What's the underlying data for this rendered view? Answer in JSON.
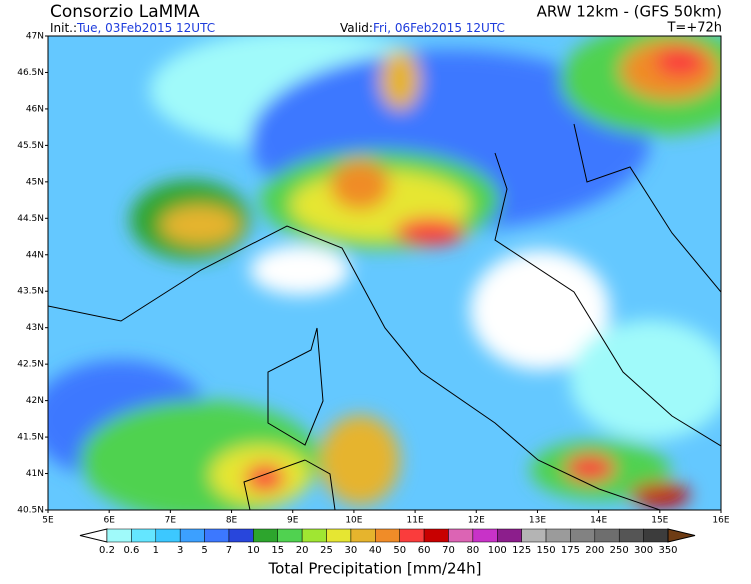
{
  "header": {
    "title": "Consorzio LaMMA",
    "model": "ARW 12km - (GFS 50km)",
    "init_label": "Init.:",
    "init_value": "Tue, 03Feb2015 12UTC",
    "valid_label": "Valid:",
    "valid_value": "Fri, 06Feb2015 12UTC",
    "lead": "T=+72h"
  },
  "map": {
    "y_ticks": [
      "47N",
      "46.5N",
      "46N",
      "45.5N",
      "45N",
      "44.5N",
      "44N",
      "43.5N",
      "43N",
      "42.5N",
      "42N",
      "41.5N",
      "41N",
      "40.5N"
    ],
    "x_ticks": [
      "5E",
      "6E",
      "7E",
      "8E",
      "9E",
      "10E",
      "11E",
      "12E",
      "13E",
      "14E",
      "15E",
      "16E"
    ]
  },
  "colorbar": {
    "labels": [
      "0.2",
      "0.6",
      "1",
      "3",
      "5",
      "7",
      "10",
      "15",
      "20",
      "25",
      "30",
      "40",
      "50",
      "60",
      "70",
      "80",
      "100",
      "125",
      "150",
      "175",
      "200",
      "250",
      "300",
      "350"
    ],
    "colors": [
      "#ffffff",
      "#a0fafa",
      "#64e6ff",
      "#3cc8ff",
      "#3ca0ff",
      "#3c78ff",
      "#2846dc",
      "#2da52d",
      "#50d250",
      "#a0e632",
      "#e6e632",
      "#e6b42d",
      "#f08c28",
      "#fa3c3c",
      "#c80000",
      "#dc64b4",
      "#c832c8",
      "#8c1e8c",
      "#b4b4b4",
      "#9b9b9b",
      "#828282",
      "#6e6e6e",
      "#555555",
      "#3c3c3c",
      "#6e3c14"
    ],
    "title": "Total Precipitation [mm/24h]"
  }
}
